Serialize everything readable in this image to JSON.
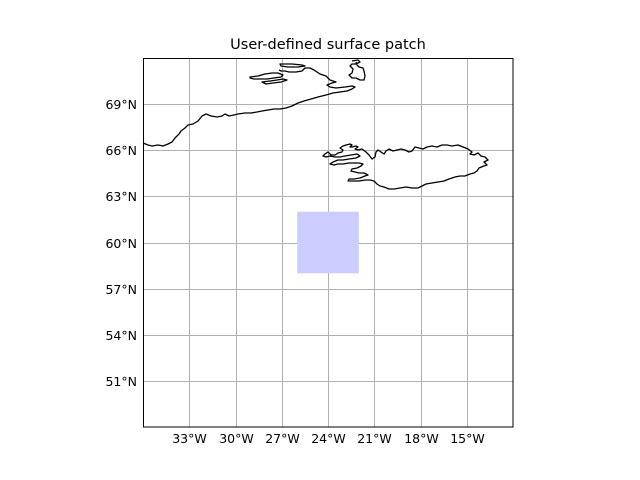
{
  "chart_data": {
    "type": "map",
    "title": "User-defined surface patch",
    "projection": "PlateCarree",
    "extent": {
      "lon_min": -36,
      "lon_max": -12,
      "lat_min": 48,
      "lat_max": 72
    },
    "gridlines": true,
    "xticks": [
      {
        "value": -33,
        "label": "33°W"
      },
      {
        "value": -30,
        "label": "30°W"
      },
      {
        "value": -27,
        "label": "27°W"
      },
      {
        "value": -24,
        "label": "24°W"
      },
      {
        "value": -21,
        "label": "21°W"
      },
      {
        "value": -18,
        "label": "18°W"
      },
      {
        "value": -15,
        "label": "15°W"
      }
    ],
    "yticks": [
      {
        "value": 51,
        "label": "51°N"
      },
      {
        "value": 54,
        "label": "54°N"
      },
      {
        "value": 57,
        "label": "57°N"
      },
      {
        "value": 60,
        "label": "60°N"
      },
      {
        "value": 63,
        "label": "63°N"
      },
      {
        "value": 66,
        "label": "66°N"
      },
      {
        "value": 69,
        "label": "69°N"
      }
    ],
    "patch": {
      "lon_min": -26,
      "lon_max": -22,
      "lat_min": 58,
      "lat_max": 62,
      "color": "#ccccff"
    },
    "coastline_color": "#000000",
    "grid_color": "#b0b0b0"
  }
}
